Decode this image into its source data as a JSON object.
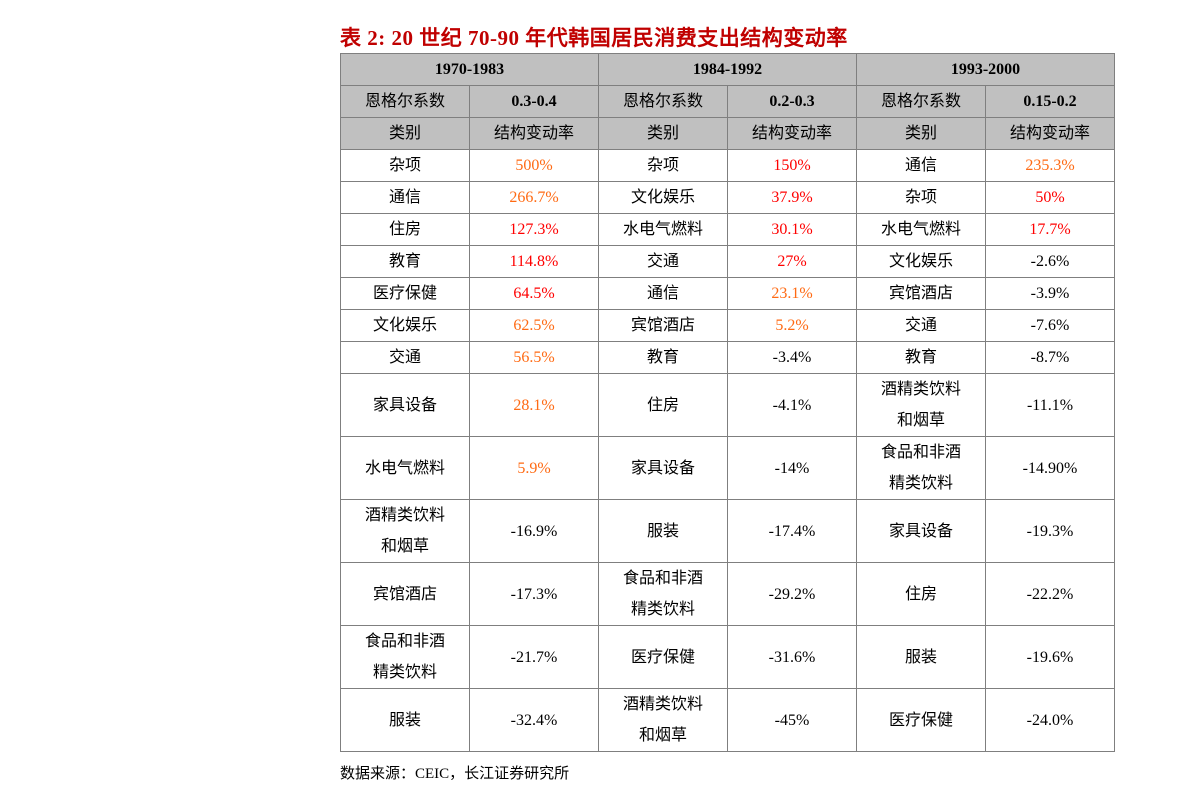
{
  "title": "表 2:  20 世纪 70-90 年代韩国居民消费支出结构变动率",
  "colors": {
    "orange": "#ff6a13",
    "red": "#ff0000",
    "header_bg": "#c0c0c0"
  },
  "periods": [
    {
      "label": "1970-1983",
      "engel_label": "恩格尔系数",
      "engel_value": "0.3-0.4",
      "col1": "类别",
      "col2": "结构变动率"
    },
    {
      "label": "1984-1992",
      "engel_label": "恩格尔系数",
      "engel_value": "0.2-0.3",
      "col1": "类别",
      "col2": "结构变动率"
    },
    {
      "label": "1993-2000",
      "engel_label": "恩格尔系数",
      "engel_value": "0.15-0.2",
      "col1": "类别",
      "col2": "结构变动率"
    }
  ],
  "rows": [
    [
      {
        "category": "杂项",
        "value": "500%",
        "color": "orange"
      },
      {
        "category": "杂项",
        "value": "150%",
        "color": "red"
      },
      {
        "category": "通信",
        "value": "235.3%",
        "color": "orange"
      }
    ],
    [
      {
        "category": "通信",
        "value": "266.7%",
        "color": "orange"
      },
      {
        "category": "文化娱乐",
        "value": "37.9%",
        "color": "red"
      },
      {
        "category": "杂项",
        "value": "50%",
        "color": "red"
      }
    ],
    [
      {
        "category": "住房",
        "value": "127.3%",
        "color": "red"
      },
      {
        "category": "水电气燃料",
        "value": "30.1%",
        "color": "red"
      },
      {
        "category": "水电气燃料",
        "value": "17.7%",
        "color": "red"
      }
    ],
    [
      {
        "category": "教育",
        "value": "114.8%",
        "color": "red"
      },
      {
        "category": "交通",
        "value": "27%",
        "color": "red"
      },
      {
        "category": "文化娱乐",
        "value": "-2.6%"
      }
    ],
    [
      {
        "category": "医疗保健",
        "value": "64.5%",
        "color": "red"
      },
      {
        "category": "通信",
        "value": "23.1%",
        "color": "orange"
      },
      {
        "category": "宾馆酒店",
        "value": "-3.9%"
      }
    ],
    [
      {
        "category": "文化娱乐",
        "value": "62.5%",
        "color": "orange"
      },
      {
        "category": "宾馆酒店",
        "value": "5.2%",
        "color": "orange"
      },
      {
        "category": "交通",
        "value": "-7.6%"
      }
    ],
    [
      {
        "category": "交通",
        "value": "56.5%",
        "color": "orange"
      },
      {
        "category": "教育",
        "value": "-3.4%"
      },
      {
        "category": "教育",
        "value": "-8.7%"
      }
    ],
    [
      {
        "category": "家具设备",
        "value": "28.1%",
        "color": "orange"
      },
      {
        "category": "住房",
        "value": "-4.1%"
      },
      {
        "category": "酒精类饮料\n和烟草",
        "value": "-11.1%"
      }
    ],
    [
      {
        "category": "水电气燃料",
        "value": "5.9%",
        "color": "orange"
      },
      {
        "category": "家具设备",
        "value": "-14%"
      },
      {
        "category": "食品和非酒\n精类饮料",
        "value": "-14.90%"
      }
    ],
    [
      {
        "category": "酒精类饮料\n和烟草",
        "value": "-16.9%"
      },
      {
        "category": "服装",
        "value": "-17.4%"
      },
      {
        "category": "家具设备",
        "value": "-19.3%"
      }
    ],
    [
      {
        "category": "宾馆酒店",
        "value": "-17.3%"
      },
      {
        "category": "食品和非酒\n精类饮料",
        "value": "-29.2%"
      },
      {
        "category": "住房",
        "value": "-22.2%"
      }
    ],
    [
      {
        "category": "食品和非酒\n精类饮料",
        "value": "-21.7%"
      },
      {
        "category": "医疗保健",
        "value": "-31.6%"
      },
      {
        "category": "服装",
        "value": "-19.6%"
      }
    ],
    [
      {
        "category": "服装",
        "value": "-32.4%"
      },
      {
        "category": "酒精类饮料\n和烟草",
        "value": "-45%"
      },
      {
        "category": "医疗保健",
        "value": "-24.0%"
      }
    ]
  ],
  "source": "数据来源：CEIC，长江证券研究所"
}
